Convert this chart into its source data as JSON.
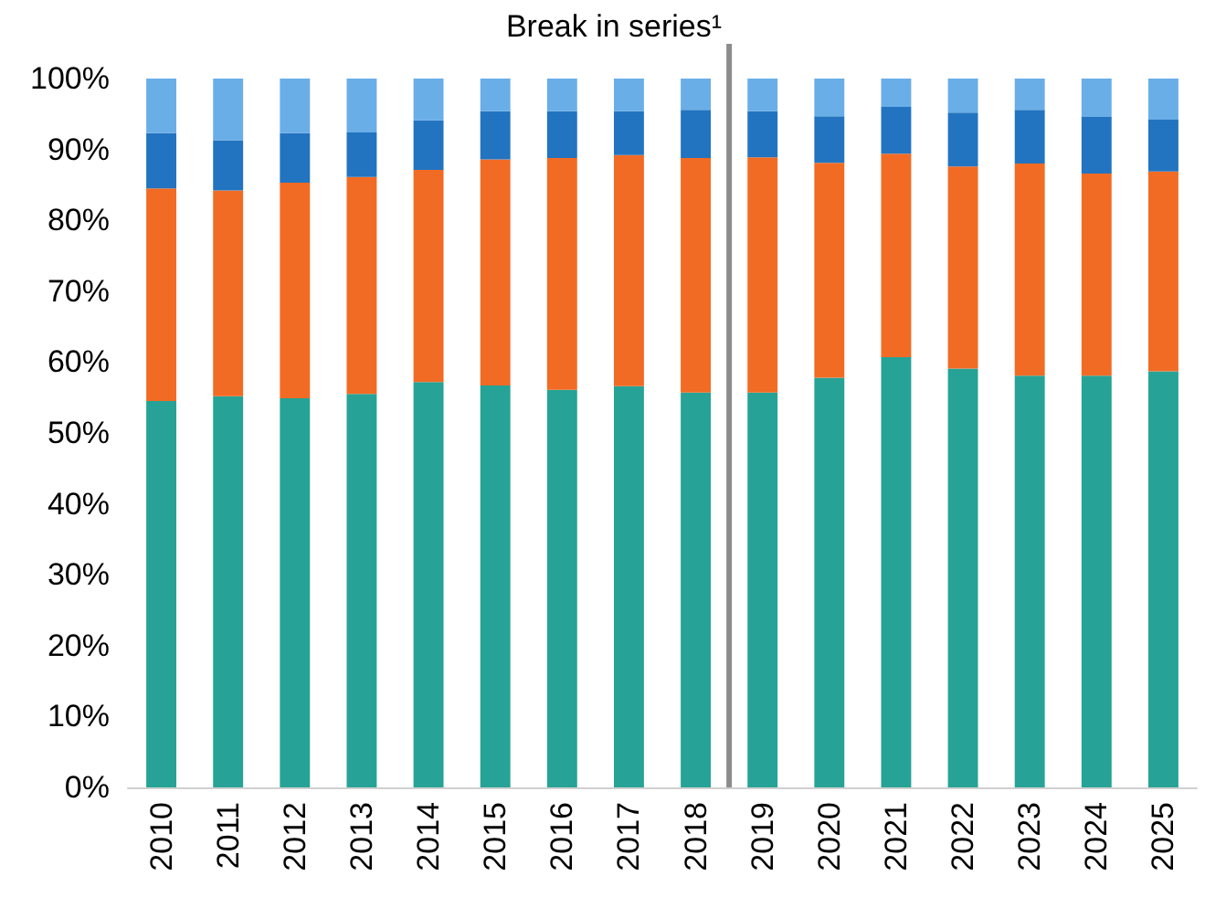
{
  "chart_data": {
    "type": "bar",
    "stacked": true,
    "categories": [
      "2010",
      "2011",
      "2012",
      "2013",
      "2014",
      "2015",
      "2016",
      "2017",
      "2018",
      "2019",
      "2020",
      "2021",
      "2022",
      "2023",
      "2024",
      "2025"
    ],
    "series": [
      {
        "color": "#26a396",
        "values": [
          54.5,
          55.2,
          54.9,
          55.5,
          57.2,
          56.7,
          56.1,
          56.6,
          55.7,
          55.7,
          57.8,
          60.7,
          59.1,
          58.1,
          58.1,
          58.7
        ]
      },
      {
        "color": "#f26b24",
        "values": [
          30.0,
          29.0,
          30.4,
          30.6,
          29.9,
          31.9,
          32.7,
          32.6,
          33.1,
          33.2,
          30.3,
          28.7,
          28.5,
          29.9,
          28.5,
          28.2
        ]
      },
      {
        "color": "#2374c0",
        "values": [
          7.8,
          7.1,
          7.0,
          6.3,
          7.0,
          6.8,
          6.6,
          6.2,
          6.8,
          6.5,
          6.6,
          6.6,
          7.6,
          7.6,
          8.0,
          7.3
        ]
      },
      {
        "color": "#6aaee8",
        "values": [
          7.7,
          8.7,
          7.7,
          7.6,
          5.9,
          4.6,
          4.6,
          4.6,
          4.4,
          4.6,
          5.3,
          4.0,
          4.8,
          4.4,
          5.4,
          5.8
        ]
      }
    ],
    "ylim": [
      0,
      100
    ],
    "yticks": [
      {
        "value": 0,
        "label": "0%"
      },
      {
        "value": 10,
        "label": "10%"
      },
      {
        "value": 20,
        "label": "20%"
      },
      {
        "value": 30,
        "label": "30%"
      },
      {
        "value": 40,
        "label": "40%"
      },
      {
        "value": 50,
        "label": "50%"
      },
      {
        "value": 60,
        "label": "60%"
      },
      {
        "value": 70,
        "label": "70%"
      },
      {
        "value": 80,
        "label": "80%"
      },
      {
        "value": 90,
        "label": "90%"
      },
      {
        "value": 100,
        "label": "100%"
      }
    ],
    "annotations": [
      "Break in series¹"
    ]
  }
}
